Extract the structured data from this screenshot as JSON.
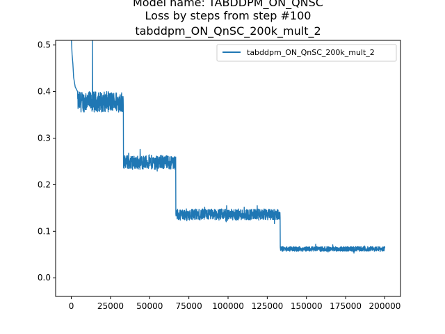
{
  "chart_data": {
    "type": "line",
    "title_lines": [
      "Model name: TABDDPM_ON_QNSC",
      "Loss by steps from step #100",
      "tabddpm_ON_QnSC_200k_mult_2"
    ],
    "xlabel": "",
    "ylabel": "",
    "xlim": [
      -10000,
      210000
    ],
    "ylim": [
      -0.04,
      0.51
    ],
    "x_ticks": [
      0,
      25000,
      50000,
      75000,
      100000,
      125000,
      150000,
      175000,
      200000
    ],
    "y_ticks": [
      0.0,
      0.1,
      0.2,
      0.3,
      0.4,
      0.5
    ],
    "y_tick_labels": [
      "0.0",
      "0.1",
      "0.2",
      "0.3",
      "0.4",
      "0.5"
    ],
    "grid": false,
    "legend_position": "top-right",
    "series": [
      {
        "name": "tabddpm_ON_QnSC_200k_mult_2",
        "color": "#1f77b4",
        "x_range": [
          100,
          200000
        ],
        "segments": [
          {
            "x": [
              100,
              33300
            ],
            "mean": 0.378,
            "noise": 0.022
          },
          {
            "x": [
              33300,
              66700
            ],
            "mean": 0.248,
            "noise": 0.015
          },
          {
            "x": [
              66700,
              133300
            ],
            "mean": 0.136,
            "noise": 0.012
          },
          {
            "x": [
              133300,
              200000
            ],
            "mean": 0.062,
            "noise": 0.005
          }
        ],
        "early_points": [
          {
            "x": 100,
            "y": 0.51
          },
          {
            "x": 500,
            "y": 0.48
          },
          {
            "x": 1000,
            "y": 0.46
          },
          {
            "x": 1500,
            "y": 0.43
          },
          {
            "x": 2500,
            "y": 0.41
          },
          {
            "x": 4000,
            "y": 0.4
          }
        ],
        "spikes": [
          {
            "x": 13500,
            "y": 0.51
          }
        ]
      }
    ]
  }
}
